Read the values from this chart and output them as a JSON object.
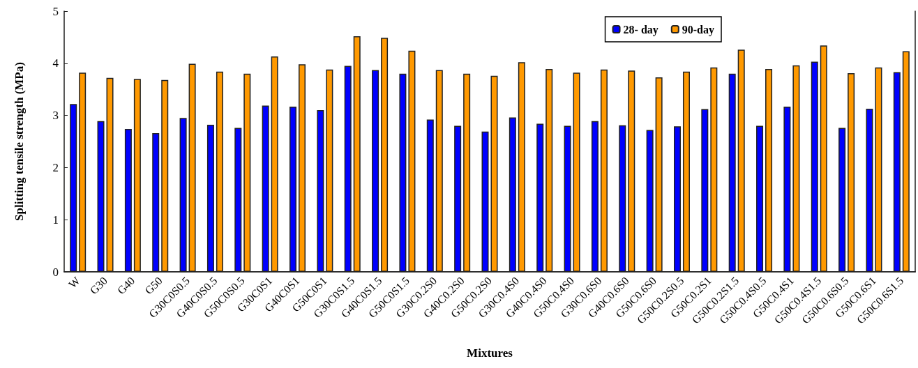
{
  "chart_data": {
    "type": "bar",
    "xlabel": "Mixtures",
    "ylabel": "Splitting tensile strength (MPa)",
    "categories": [
      "W",
      "G30",
      "G40",
      "G50",
      "G30C0S0.5",
      "G40C0S0.5",
      "G50C0S0.5",
      "G30C0S1",
      "G40C0S1",
      "G50C0S1",
      "G30C0S1.5",
      "G40C0S1.5",
      "G50C0S1.5",
      "G30C0.2S0",
      "G40C0.2S0",
      "G50C0.2S0",
      "G30C0.4S0",
      "G40C0.4S0",
      "G50C0.4S0",
      "G30C0.6S0",
      "G40C0.6S0",
      "G50C0.6S0",
      "G50C0.2S0.5",
      "G50C0.2S1",
      "G50C0.2S1.5",
      "G50C0.4S0.5",
      "G50C0.4S1",
      "G50C0.4S1.5",
      "G50C0.6S0.5",
      "G50C0.6S1",
      "G50C0.6S1.5"
    ],
    "series": [
      {
        "name": "28- day",
        "color": "#0000ff",
        "values": [
          3.22,
          2.89,
          2.74,
          2.66,
          2.95,
          2.82,
          2.76,
          3.19,
          3.17,
          3.1,
          3.95,
          3.87,
          3.8,
          2.92,
          2.8,
          2.69,
          2.96,
          2.84,
          2.8,
          2.89,
          2.81,
          2.72,
          2.79,
          3.12,
          3.8,
          2.8,
          3.17,
          4.03,
          2.76,
          3.13,
          3.83
        ]
      },
      {
        "name": "90-day",
        "color": "#ff9900",
        "values": [
          3.82,
          3.72,
          3.7,
          3.68,
          3.99,
          3.84,
          3.8,
          4.13,
          3.98,
          3.88,
          4.52,
          4.49,
          4.24,
          3.87,
          3.8,
          3.76,
          4.02,
          3.89,
          3.82,
          3.88,
          3.86,
          3.73,
          3.84,
          3.92,
          4.26,
          3.89,
          3.96,
          4.34,
          3.81,
          3.92,
          4.23
        ]
      }
    ],
    "ylim": [
      0,
      5
    ],
    "yticks": [
      0,
      1,
      2,
      3,
      4,
      5
    ],
    "grid": false,
    "legend": "top right"
  }
}
